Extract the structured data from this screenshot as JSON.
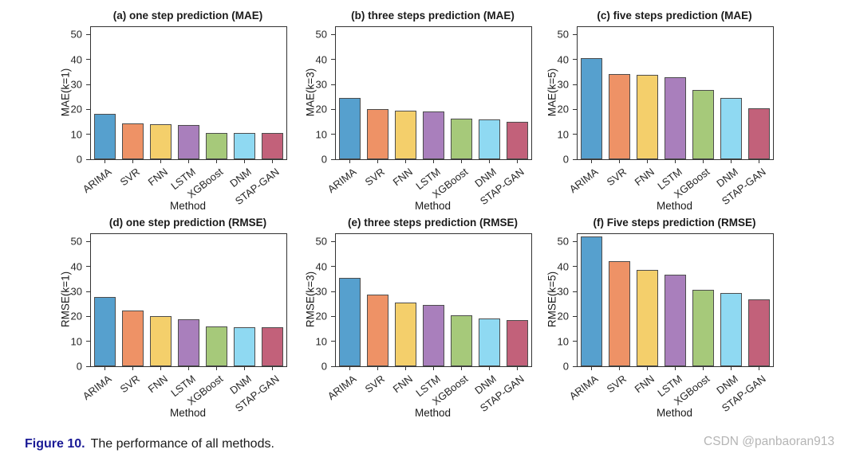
{
  "caption": {
    "label": "Figure 10.",
    "text": "The performance of all methods."
  },
  "watermark": "CSDN @panbaoran913",
  "colors": {
    "bars": [
      "#56A0CE",
      "#EE9266",
      "#F4CF6B",
      "#A97FBC",
      "#A6C97A",
      "#8FD9F2",
      "#C2617A"
    ],
    "bar_edge": "#4d4d4d",
    "axis": "#333333",
    "caption_label": "#1a1a96",
    "watermark": "#b5b5b5"
  },
  "chart_data": [
    {
      "type": "bar",
      "title": "(a) one step prediction (MAE)",
      "ylabel": "MAE(k=1)",
      "xlabel": "Method",
      "categories": [
        "ARIMA",
        "SVR",
        "FNN",
        "LSTM",
        "XGBoost",
        "DNM",
        "STAP-GAN"
      ],
      "values": [
        18.2,
        14.4,
        14.1,
        13.6,
        10.7,
        10.4,
        10.6
      ],
      "ylim": [
        0,
        53
      ],
      "yticks": [
        0,
        10,
        20,
        30,
        40,
        50
      ],
      "grid": false,
      "legend": "none"
    },
    {
      "type": "bar",
      "title": "(b) three steps prediction (MAE)",
      "ylabel": "MAE(k=3)",
      "xlabel": "Method",
      "categories": [
        "ARIMA",
        "SVR",
        "FNN",
        "LSTM",
        "XGBoost",
        "DNM",
        "STAP-GAN"
      ],
      "values": [
        24.6,
        20.0,
        19.6,
        19.1,
        16.2,
        15.9,
        15.1
      ],
      "ylim": [
        0,
        53
      ],
      "yticks": [
        0,
        10,
        20,
        30,
        40,
        50
      ],
      "grid": false,
      "legend": "none"
    },
    {
      "type": "bar",
      "title": "(c) five steps prediction (MAE)",
      "ylabel": "MAE(k=5)",
      "xlabel": "Method",
      "categories": [
        "ARIMA",
        "SVR",
        "FNN",
        "LSTM",
        "XGBoost",
        "DNM",
        "STAP-GAN"
      ],
      "values": [
        40.7,
        34.1,
        33.7,
        32.8,
        27.8,
        24.5,
        20.3
      ],
      "ylim": [
        0,
        53
      ],
      "yticks": [
        0,
        10,
        20,
        30,
        40,
        50
      ],
      "grid": false,
      "legend": "none"
    },
    {
      "type": "bar",
      "title": "(d) one step prediction (RMSE)",
      "ylabel": "RMSE(k=1)",
      "xlabel": "Method",
      "categories": [
        "ARIMA",
        "SVR",
        "FNN",
        "LSTM",
        "XGBoost",
        "DNM",
        "STAP-GAN"
      ],
      "values": [
        27.8,
        22.4,
        20.0,
        19.0,
        16.1,
        15.5,
        15.6
      ],
      "ylim": [
        0,
        53
      ],
      "yticks": [
        0,
        10,
        20,
        30,
        40,
        50
      ],
      "grid": false,
      "legend": "none"
    },
    {
      "type": "bar",
      "title": "(e) three steps prediction (RMSE)",
      "ylabel": "RMSE(k=3)",
      "xlabel": "Method",
      "categories": [
        "ARIMA",
        "SVR",
        "FNN",
        "LSTM",
        "XGBoost",
        "DNM",
        "STAP-GAN"
      ],
      "values": [
        35.4,
        28.8,
        25.7,
        24.5,
        20.5,
        19.3,
        18.4
      ],
      "ylim": [
        0,
        53
      ],
      "yticks": [
        0,
        10,
        20,
        30,
        40,
        50
      ],
      "grid": false,
      "legend": "none"
    },
    {
      "type": "bar",
      "title": "(f) Five steps prediction (RMSE)",
      "ylabel": "RMSE(k=5)",
      "xlabel": "Method",
      "categories": [
        "ARIMA",
        "SVR",
        "FNN",
        "LSTM",
        "XGBoost",
        "DNM",
        "STAP-GAN"
      ],
      "values": [
        52.1,
        42.3,
        38.7,
        36.8,
        30.7,
        29.3,
        26.9
      ],
      "ylim": [
        0,
        53
      ],
      "yticks": [
        0,
        10,
        20,
        30,
        40,
        50
      ],
      "grid": false,
      "legend": "none"
    }
  ]
}
